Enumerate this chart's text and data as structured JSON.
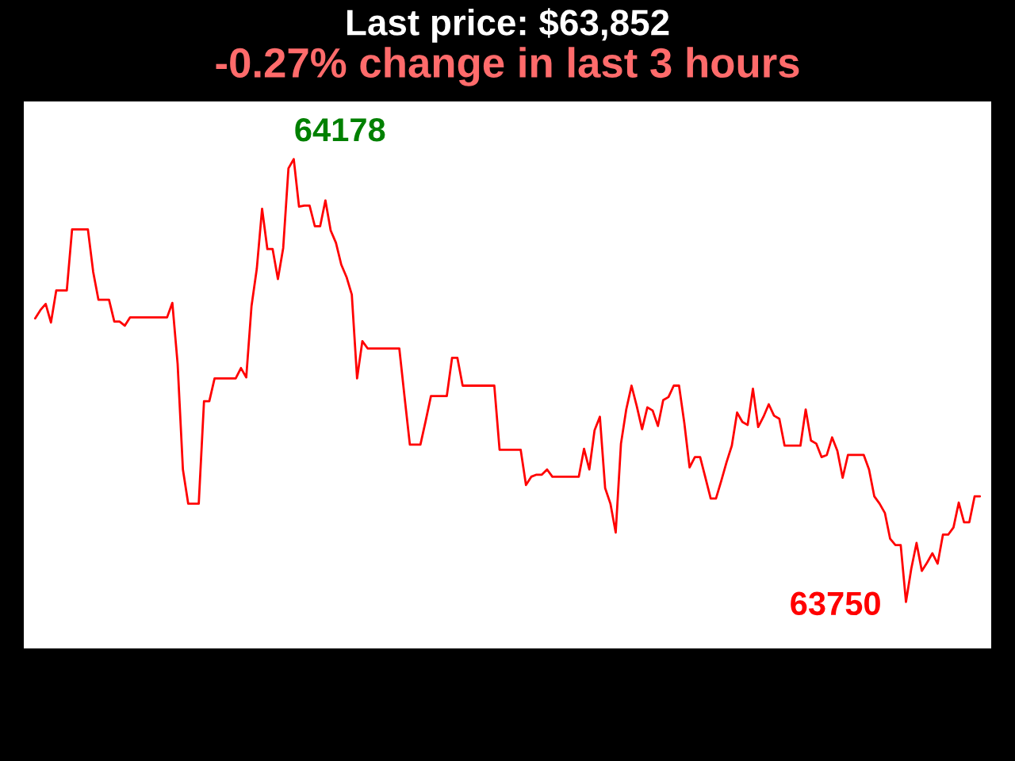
{
  "chart_data": {
    "type": "line",
    "title": "Last price: $63,852",
    "subtitle": "-0.27% change in last 3 hours",
    "categories": [
      null,
      null,
      null,
      null,
      null,
      null,
      null,
      null,
      null,
      null,
      null,
      null,
      null,
      null,
      null,
      null,
      null,
      null,
      null,
      null,
      null,
      null,
      null,
      null,
      null,
      null,
      null,
      null,
      null,
      null,
      null,
      null,
      null,
      null,
      null,
      null,
      null,
      null,
      null,
      null,
      null,
      null,
      null,
      null,
      null,
      null,
      null,
      null,
      null,
      null,
      null,
      null,
      null,
      null,
      null,
      null,
      null,
      null,
      null,
      null,
      null,
      null,
      null,
      null,
      null,
      null,
      null,
      null,
      null,
      null,
      null,
      null,
      null,
      null,
      null,
      null,
      null,
      null,
      null,
      null,
      null,
      null,
      null,
      null,
      null,
      null,
      null,
      null,
      null,
      null,
      null,
      null,
      null,
      null,
      null,
      null,
      null,
      null,
      null,
      null,
      null,
      null,
      null,
      null,
      null,
      null,
      null,
      null,
      null,
      null,
      null,
      null,
      null,
      null,
      null,
      null,
      null,
      null,
      null,
      null,
      null,
      null,
      null,
      null,
      null,
      null,
      null,
      null,
      null,
      null,
      null,
      null,
      null,
      null,
      null,
      null,
      null,
      null,
      null,
      null,
      null,
      null,
      null,
      null,
      null,
      null,
      null,
      null,
      null,
      null,
      null,
      null,
      null,
      null,
      null,
      null,
      null,
      null,
      null,
      null,
      null,
      null,
      null,
      null,
      null,
      null,
      null,
      null,
      null,
      null,
      null,
      null,
      null,
      null,
      null,
      null,
      null,
      null,
      null,
      null
    ],
    "series": [
      {
        "color": "#ff0000",
        "values": [
          64024,
          64032,
          64038,
          64020,
          64051,
          64051,
          64051,
          64110,
          64110,
          64110,
          64110,
          64069,
          64042,
          64042,
          64042,
          64021,
          64021,
          64017,
          64025,
          64025,
          64025,
          64025,
          64025,
          64025,
          64025,
          64025,
          64039,
          63980,
          63878,
          63845,
          63845,
          63845,
          63944,
          63944,
          63966,
          63966,
          63966,
          63966,
          63966,
          63976,
          63967,
          64036,
          64072,
          64130,
          64091,
          64091,
          64062,
          64092,
          64169,
          64178,
          64132,
          64133,
          64133,
          64113,
          64113,
          64138,
          64109,
          64097,
          64076,
          64064,
          64047,
          63966,
          64002,
          63995,
          63995,
          63995,
          63995,
          63995,
          63995,
          63995,
          63948,
          63902,
          63902,
          63902,
          63925,
          63949,
          63949,
          63949,
          63949,
          63986,
          63986,
          63959,
          63959,
          63959,
          63959,
          63959,
          63959,
          63959,
          63897,
          63897,
          63897,
          63897,
          63897,
          63863,
          63871,
          63873,
          63873,
          63878,
          63871,
          63871,
          63871,
          63871,
          63871,
          63871,
          63898,
          63878,
          63916,
          63929,
          63860,
          63845,
          63817,
          63903,
          63936,
          63959,
          63939,
          63917,
          63938,
          63935,
          63920,
          63945,
          63948,
          63959,
          63959,
          63923,
          63880,
          63890,
          63890,
          63870,
          63850,
          63850,
          63867,
          63885,
          63901,
          63933,
          63924,
          63921,
          63956,
          63919,
          63929,
          63941,
          63930,
          63927,
          63901,
          63901,
          63901,
          63901,
          63936,
          63906,
          63903,
          63890,
          63892,
          63909,
          63896,
          63870,
          63892,
          63892,
          63892,
          63892,
          63878,
          63852,
          63845,
          63836,
          63811,
          63805,
          63805,
          63750,
          63782,
          63807,
          63780,
          63788,
          63797,
          63787,
          63815,
          63815,
          63822,
          63846,
          63827,
          63827,
          63852,
          63852
        ],
        "value_labels": [
          null,
          null,
          null,
          null,
          null,
          null,
          null,
          null,
          null,
          null,
          null,
          null,
          null,
          null,
          null,
          null,
          null,
          null,
          null,
          null,
          null,
          null,
          null,
          null,
          null,
          null,
          null,
          null,
          null,
          null,
          null,
          null,
          null,
          null,
          null,
          null,
          null,
          null,
          null,
          null,
          null,
          null,
          null,
          null,
          null,
          null,
          null,
          null,
          null,
          "64178",
          null,
          null,
          null,
          null,
          null,
          null,
          null,
          null,
          null,
          null,
          null,
          null,
          null,
          null,
          null,
          null,
          null,
          null,
          null,
          null,
          null,
          null,
          null,
          null,
          null,
          null,
          null,
          null,
          null,
          null,
          null,
          null,
          null,
          null,
          null,
          null,
          null,
          null,
          null,
          null,
          null,
          null,
          null,
          null,
          null,
          null,
          null,
          null,
          null,
          null,
          null,
          null,
          null,
          null,
          null,
          null,
          null,
          null,
          null,
          null,
          null,
          null,
          null,
          null,
          null,
          null,
          null,
          null,
          null,
          null,
          null,
          null,
          null,
          null,
          null,
          null,
          null,
          null,
          null,
          null,
          null,
          null,
          null,
          null,
          null,
          null,
          null,
          null,
          null,
          null,
          null,
          null,
          null,
          null,
          null,
          null,
          null,
          null,
          null,
          null,
          null,
          null,
          null,
          null,
          null,
          null,
          null,
          null,
          null,
          null,
          null,
          null,
          null,
          null,
          null,
          "63750",
          null,
          null,
          null,
          null,
          null,
          null,
          null,
          null,
          null,
          null,
          null,
          null,
          null,
          null
        ]
      }
    ]
  }
}
